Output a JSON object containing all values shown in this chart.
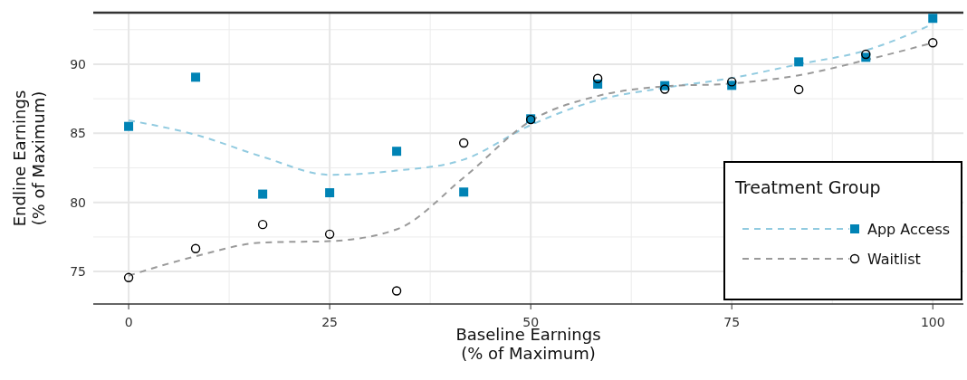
{
  "chart_data": {
    "type": "scatter",
    "xlabel": "Baseline Earnings\n(% of Maximum)",
    "ylabel": "Endline Earnings\n(% of Maximum)",
    "legend_title": "Treatment Group",
    "xlim": [
      -4.4,
      103.8
    ],
    "ylim": [
      72.65,
      93.73
    ],
    "xticks": [
      0,
      25,
      50,
      75,
      100
    ],
    "yticks": [
      75,
      80,
      85,
      90
    ],
    "grid": true,
    "legend": "bottom right",
    "series": [
      {
        "type": "line",
        "color": "#92cbe0",
        "line_style": "dashed",
        "x": [
          0,
          8.33,
          16.67,
          25,
          33.33,
          41.67,
          50,
          58.33,
          66.67,
          75,
          83.33,
          91.67,
          100
        ],
        "values": [
          85.94,
          84.9,
          83.3,
          82.0,
          82.3,
          83.1,
          85.6,
          87.4,
          88.3,
          89.0,
          90.0,
          91.0,
          92.9
        ]
      },
      {
        "type": "line",
        "color": "#9a9a9a",
        "line_style": "dashed",
        "x": [
          0,
          8.33,
          16.67,
          25,
          33.33,
          41.67,
          50,
          58.33,
          66.67,
          75,
          83.33,
          91.67,
          100
        ],
        "values": [
          74.7,
          76.1,
          77.1,
          77.2,
          78.05,
          81.8,
          85.9,
          87.7,
          88.4,
          88.6,
          89.2,
          90.3,
          91.55
        ]
      },
      {
        "name": "App Access",
        "color": "#0083b5",
        "marker": "square",
        "x": [
          0,
          8.33,
          16.67,
          25,
          33.33,
          41.67,
          50,
          58.33,
          66.67,
          75,
          83.33,
          91.67,
          100
        ],
        "values": [
          85.5,
          89.06,
          80.6,
          80.7,
          83.7,
          80.75,
          86.05,
          88.56,
          88.45,
          88.47,
          90.17,
          90.5,
          93.32
        ]
      },
      {
        "name": "Waitlist",
        "color": "#000000",
        "marker": "circle",
        "x": [
          0,
          8.33,
          16.67,
          25,
          33.33,
          41.67,
          50,
          58.33,
          66.67,
          75,
          83.33,
          91.67,
          100
        ],
        "values": [
          74.56,
          76.66,
          78.4,
          77.7,
          73.6,
          84.3,
          86.0,
          88.97,
          88.2,
          88.73,
          88.17,
          90.72,
          91.55
        ]
      }
    ]
  }
}
